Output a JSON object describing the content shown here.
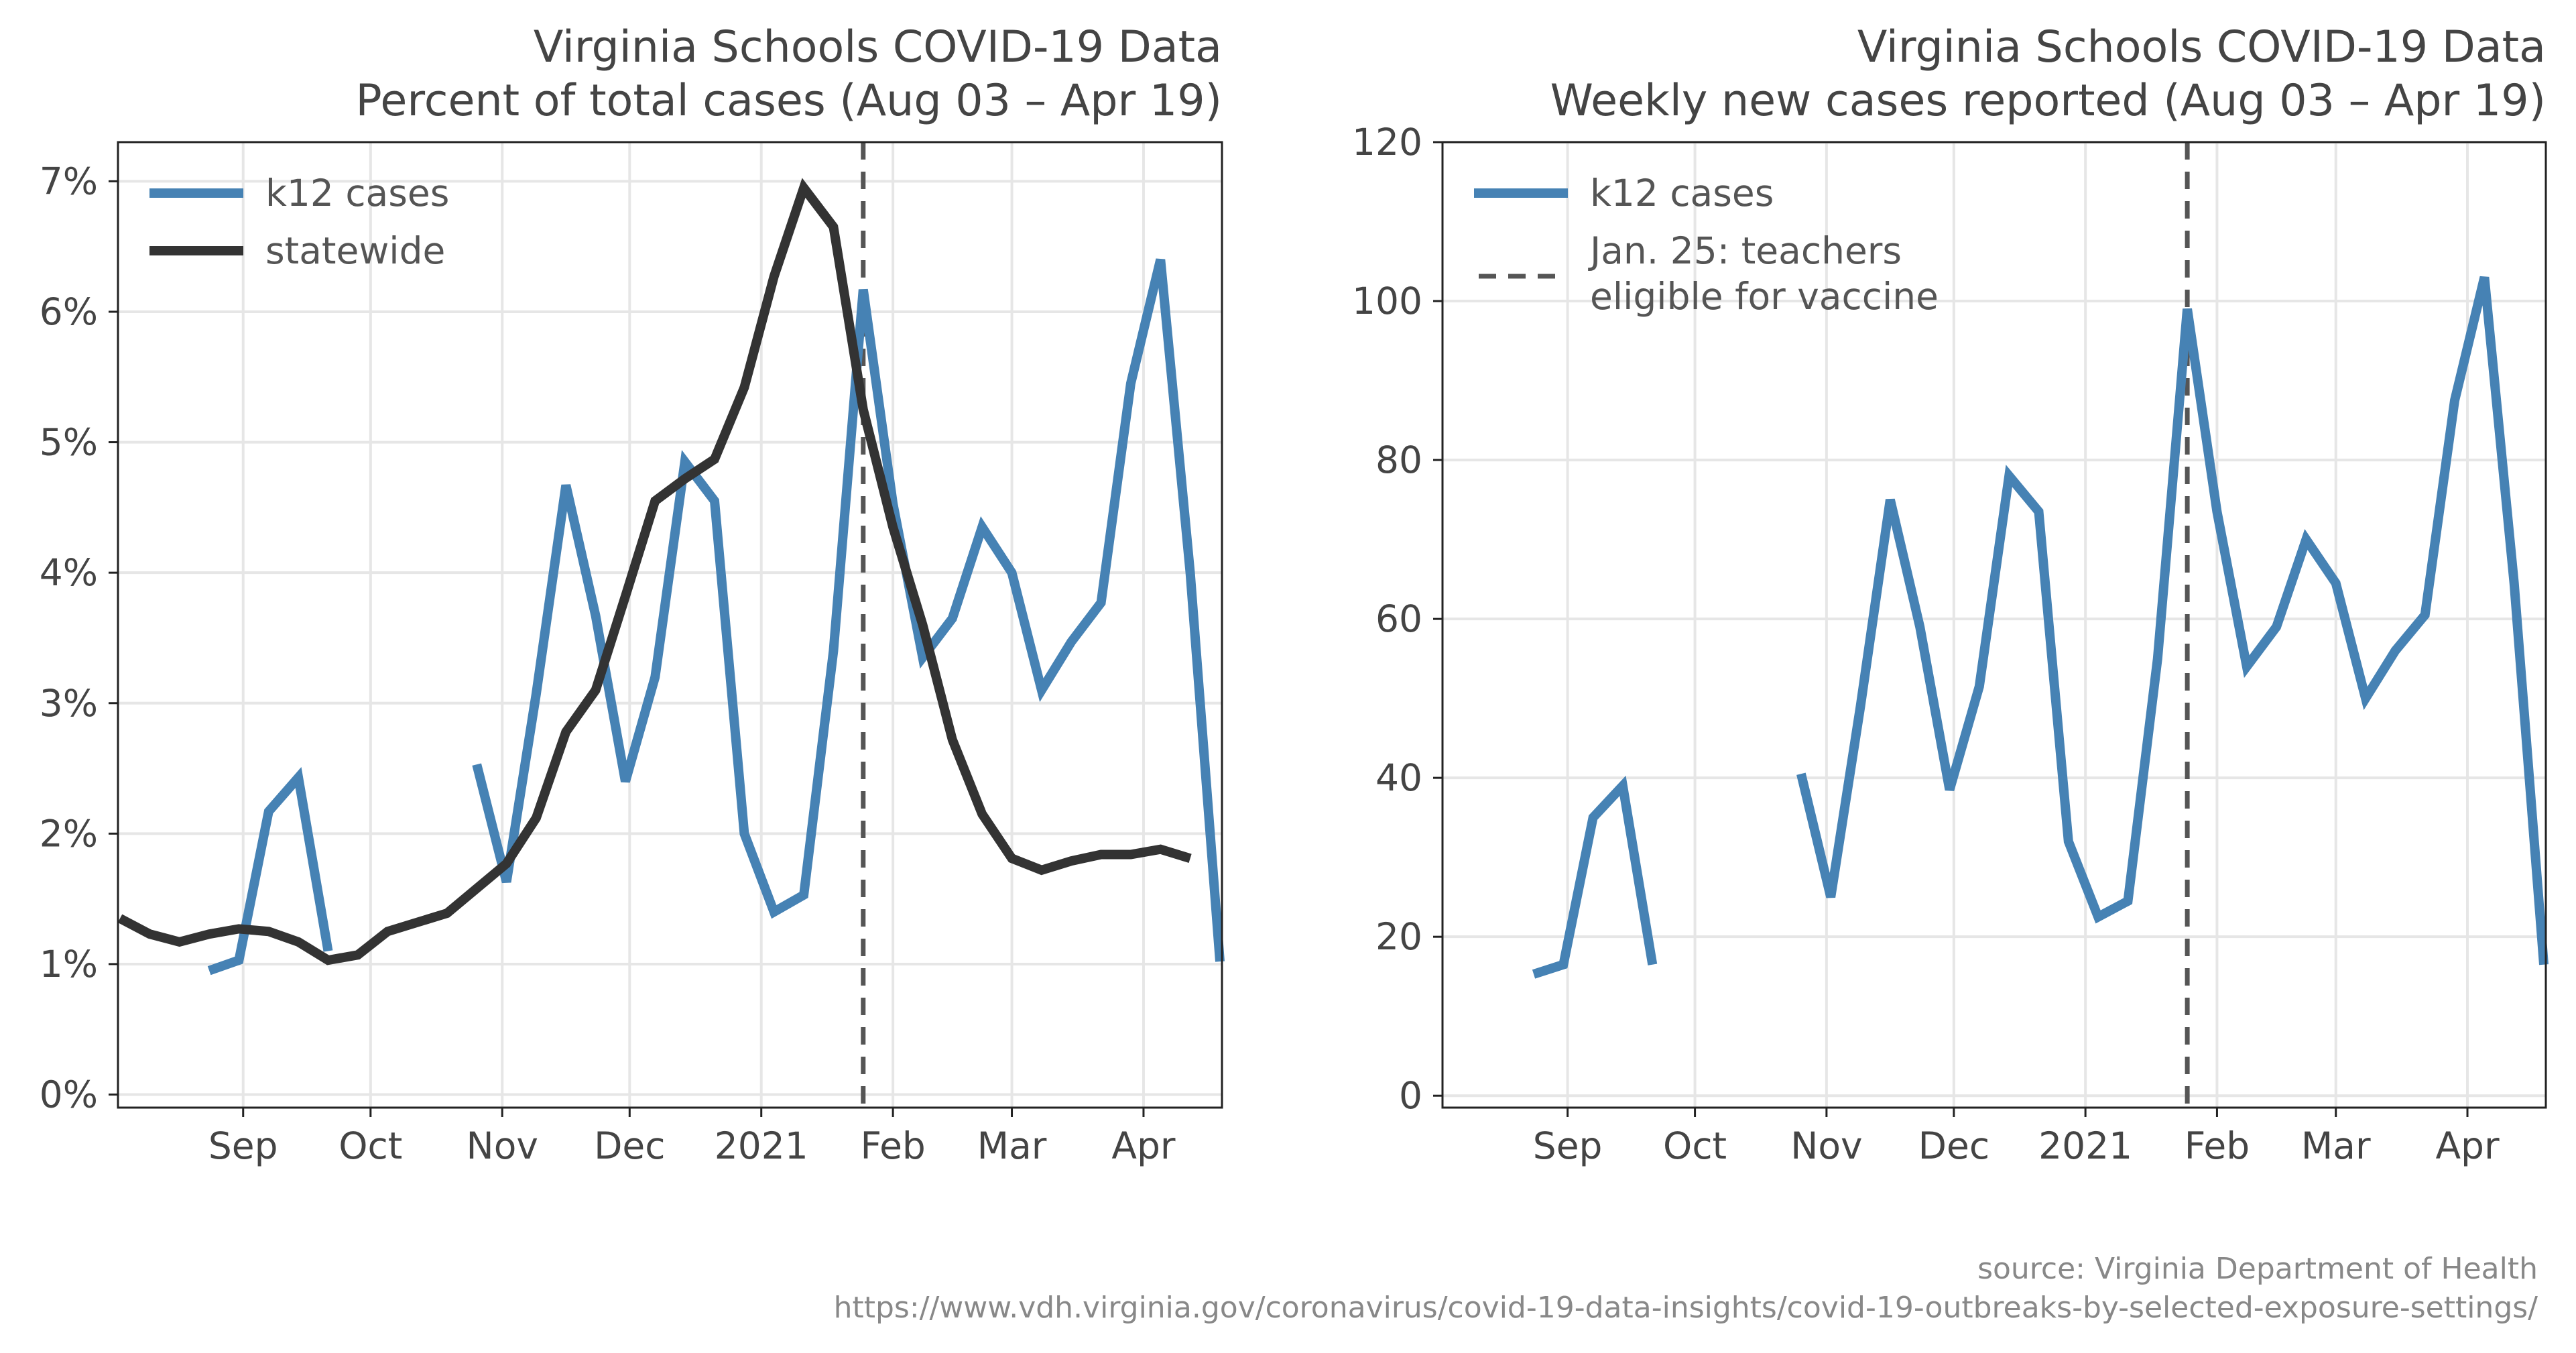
{
  "colors": {
    "k12": "#4682b4",
    "statewide": "#333333",
    "vline": "#555555",
    "grid": "#e6e6e6",
    "axis": "#222222"
  },
  "chart_data": [
    {
      "type": "line",
      "title": "Virginia Schools COVID-19 Data",
      "subtitle": "Percent of total cases (Aug 03 – Apr 19)",
      "x_tick_labels": [
        "Sep",
        "Oct",
        "Nov",
        "Dec",
        "2021",
        "Feb",
        "Mar",
        "Apr"
      ],
      "x_tick_dates": [
        "2020-09-01",
        "2020-10-01",
        "2020-11-01",
        "2020-12-01",
        "2021-01-01",
        "2021-02-01",
        "2021-03-01",
        "2021-04-01"
      ],
      "y_tick_labels": [
        "0%",
        "1%",
        "2%",
        "3%",
        "4%",
        "5%",
        "6%",
        "7%"
      ],
      "y_ticks": [
        0,
        1,
        2,
        3,
        4,
        5,
        6,
        7
      ],
      "xlim": [
        "2020-08-03",
        "2021-04-19"
      ],
      "ylim": [
        -0.1,
        7.3
      ],
      "grid": true,
      "legend_position": "top-left",
      "vline": {
        "x": "2021-01-25"
      },
      "series": [
        {
          "name": "k12 cases",
          "color_key": "k12",
          "points": [
            [
              "2020-08-24",
              0.95
            ],
            [
              "2020-08-31",
              1.03
            ],
            [
              "2020-09-07",
              2.17
            ],
            [
              "2020-09-14",
              2.43
            ],
            [
              "2020-09-21",
              1.1
            ],
            [
              "2020-10-26",
              2.53
            ],
            [
              "2020-11-02",
              1.63
            ],
            [
              "2020-11-09",
              3.07
            ],
            [
              "2020-11-16",
              4.67
            ],
            [
              "2020-11-23",
              3.67
            ],
            [
              "2020-11-30",
              2.4
            ],
            [
              "2020-12-07",
              3.2
            ],
            [
              "2020-12-14",
              4.85
            ],
            [
              "2020-12-21",
              4.55
            ],
            [
              "2020-12-28",
              2.0
            ],
            [
              "2021-01-04",
              1.4
            ],
            [
              "2021-01-11",
              1.53
            ],
            [
              "2021-01-18",
              3.4
            ],
            [
              "2021-01-25",
              6.17
            ],
            [
              "2021-02-01",
              4.53
            ],
            [
              "2021-02-08",
              3.35
            ],
            [
              "2021-02-15",
              3.65
            ],
            [
              "2021-02-22",
              4.35
            ],
            [
              "2021-03-01",
              4.0
            ],
            [
              "2021-03-08",
              3.1
            ],
            [
              "2021-03-15",
              3.47
            ],
            [
              "2021-03-22",
              3.77
            ],
            [
              "2021-03-29",
              5.45
            ],
            [
              "2021-04-05",
              6.4
            ],
            [
              "2021-04-12",
              4.0
            ],
            [
              "2021-04-19",
              1.02
            ]
          ]
        },
        {
          "name": "statewide",
          "color_key": "statewide",
          "points": [
            [
              "2020-08-03",
              1.35
            ],
            [
              "2020-08-10",
              1.23
            ],
            [
              "2020-08-17",
              1.17
            ],
            [
              "2020-08-24",
              1.23
            ],
            [
              "2020-08-31",
              1.27
            ],
            [
              "2020-09-07",
              1.25
            ],
            [
              "2020-09-14",
              1.17
            ],
            [
              "2020-09-21",
              1.03
            ],
            [
              "2020-09-28",
              1.07
            ],
            [
              "2020-10-05",
              1.25
            ],
            [
              "2020-10-12",
              1.32
            ],
            [
              "2020-10-19",
              1.39
            ],
            [
              "2020-10-26",
              1.58
            ],
            [
              "2020-11-02",
              1.77
            ],
            [
              "2020-11-09",
              2.12
            ],
            [
              "2020-11-16",
              2.78
            ],
            [
              "2020-11-23",
              3.1
            ],
            [
              "2020-11-30",
              3.82
            ],
            [
              "2020-12-07",
              4.55
            ],
            [
              "2020-12-14",
              4.72
            ],
            [
              "2020-12-21",
              4.87
            ],
            [
              "2020-12-28",
              5.42
            ],
            [
              "2021-01-04",
              6.27
            ],
            [
              "2021-01-11",
              6.95
            ],
            [
              "2021-01-18",
              6.65
            ],
            [
              "2021-01-25",
              5.25
            ],
            [
              "2021-02-01",
              4.35
            ],
            [
              "2021-02-08",
              3.6
            ],
            [
              "2021-02-15",
              2.72
            ],
            [
              "2021-02-22",
              2.15
            ],
            [
              "2021-03-01",
              1.81
            ],
            [
              "2021-03-08",
              1.72
            ],
            [
              "2021-03-15",
              1.79
            ],
            [
              "2021-03-22",
              1.84
            ],
            [
              "2021-03-29",
              1.84
            ],
            [
              "2021-04-05",
              1.88
            ],
            [
              "2021-04-12",
              1.81
            ]
          ]
        }
      ],
      "legend": [
        {
          "label": "k12 cases",
          "color_key": "k12",
          "style": "solid"
        },
        {
          "label": "statewide",
          "color_key": "statewide",
          "style": "solid"
        }
      ]
    },
    {
      "type": "line",
      "title": "Virginia Schools COVID-19 Data",
      "subtitle": "Weekly new cases reported (Aug 03 – Apr 19)",
      "x_tick_labels": [
        "Sep",
        "Oct",
        "Nov",
        "Dec",
        "2021",
        "Feb",
        "Mar",
        "Apr"
      ],
      "x_tick_dates": [
        "2020-09-01",
        "2020-10-01",
        "2020-11-01",
        "2020-12-01",
        "2021-01-01",
        "2021-02-01",
        "2021-03-01",
        "2021-04-01"
      ],
      "y_tick_labels": [
        "0",
        "20",
        "40",
        "60",
        "80",
        "100",
        "120"
      ],
      "y_ticks": [
        0,
        20,
        40,
        60,
        80,
        100,
        120
      ],
      "xlim": [
        "2020-08-03",
        "2021-04-19"
      ],
      "ylim": [
        -1.5,
        120
      ],
      "grid": true,
      "legend_position": "top-left",
      "vline": {
        "x": "2021-01-25"
      },
      "series": [
        {
          "name": "k12 cases",
          "color_key": "k12",
          "points": [
            [
              "2020-08-24",
              15.3
            ],
            [
              "2020-08-31",
              16.5
            ],
            [
              "2020-09-07",
              35
            ],
            [
              "2020-09-14",
              39
            ],
            [
              "2020-09-21",
              16.5
            ],
            [
              "2020-10-26",
              40.5
            ],
            [
              "2020-11-02",
              25
            ],
            [
              "2020-11-09",
              49
            ],
            [
              "2020-11-16",
              75
            ],
            [
              "2020-11-23",
              59
            ],
            [
              "2020-11-30",
              38.5
            ],
            [
              "2020-12-07",
              51.5
            ],
            [
              "2020-12-14",
              78
            ],
            [
              "2020-12-21",
              73.5
            ],
            [
              "2020-12-28",
              32
            ],
            [
              "2021-01-04",
              22.5
            ],
            [
              "2021-01-11",
              24.5
            ],
            [
              "2021-01-18",
              55
            ],
            [
              "2021-01-25",
              99
            ],
            [
              "2021-02-01",
              73.5
            ],
            [
              "2021-02-08",
              54
            ],
            [
              "2021-02-15",
              59
            ],
            [
              "2021-02-22",
              70
            ],
            [
              "2021-03-01",
              64.5
            ],
            [
              "2021-03-08",
              50
            ],
            [
              "2021-03-15",
              56
            ],
            [
              "2021-03-22",
              60.5
            ],
            [
              "2021-03-29",
              87.5
            ],
            [
              "2021-04-05",
              103
            ],
            [
              "2021-04-12",
              64.5
            ],
            [
              "2021-04-19",
              16.5
            ]
          ]
        }
      ],
      "legend": [
        {
          "label": "k12 cases",
          "color_key": "k12",
          "style": "solid"
        },
        {
          "label": "Jan. 25: teachers",
          "label2": "eligible for vaccine",
          "color_key": "vline",
          "style": "dashed"
        }
      ]
    }
  ],
  "source": {
    "line1": "source: Virginia Department of Health",
    "line2": "https://www.vdh.virginia.gov/coronavirus/covid-19-data-insights/covid-19-outbreaks-by-selected-exposure-settings/"
  }
}
